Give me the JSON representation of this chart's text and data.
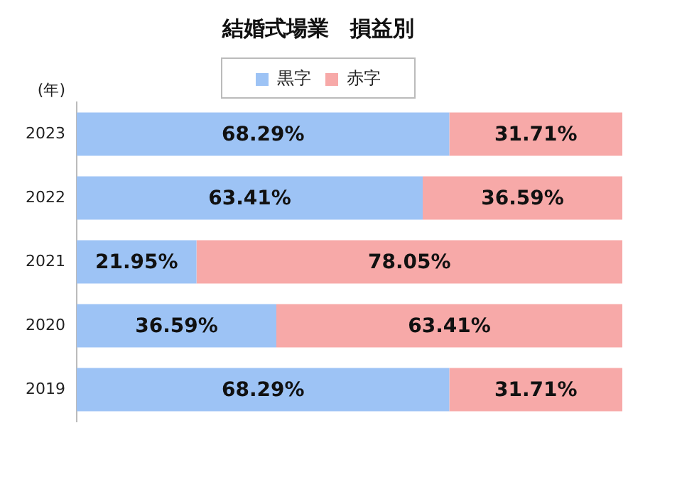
{
  "chart_data": {
    "type": "bar",
    "orientation": "horizontal",
    "stacked": true,
    "title": "結婚式場業　損益別",
    "ylabel": "(年)",
    "categories": [
      "2023",
      "2022",
      "2021",
      "2020",
      "2019"
    ],
    "series": [
      {
        "name": "黒字",
        "color": "#9dc3f5",
        "values": [
          68.29,
          63.41,
          21.95,
          36.59,
          68.29
        ],
        "value_labels": [
          "68.29%",
          "63.41%",
          "21.95%",
          "36.59%",
          "68.29%"
        ]
      },
      {
        "name": "赤字",
        "color": "#f7a9a8",
        "values": [
          31.71,
          36.59,
          78.05,
          63.41,
          31.71
        ],
        "value_labels": [
          "31.71%",
          "36.59%",
          "78.05%",
          "63.41%",
          "31.71%"
        ]
      }
    ],
    "xlim": [
      0,
      100
    ],
    "tick_labels": "y",
    "grid": false,
    "legend": "top"
  }
}
